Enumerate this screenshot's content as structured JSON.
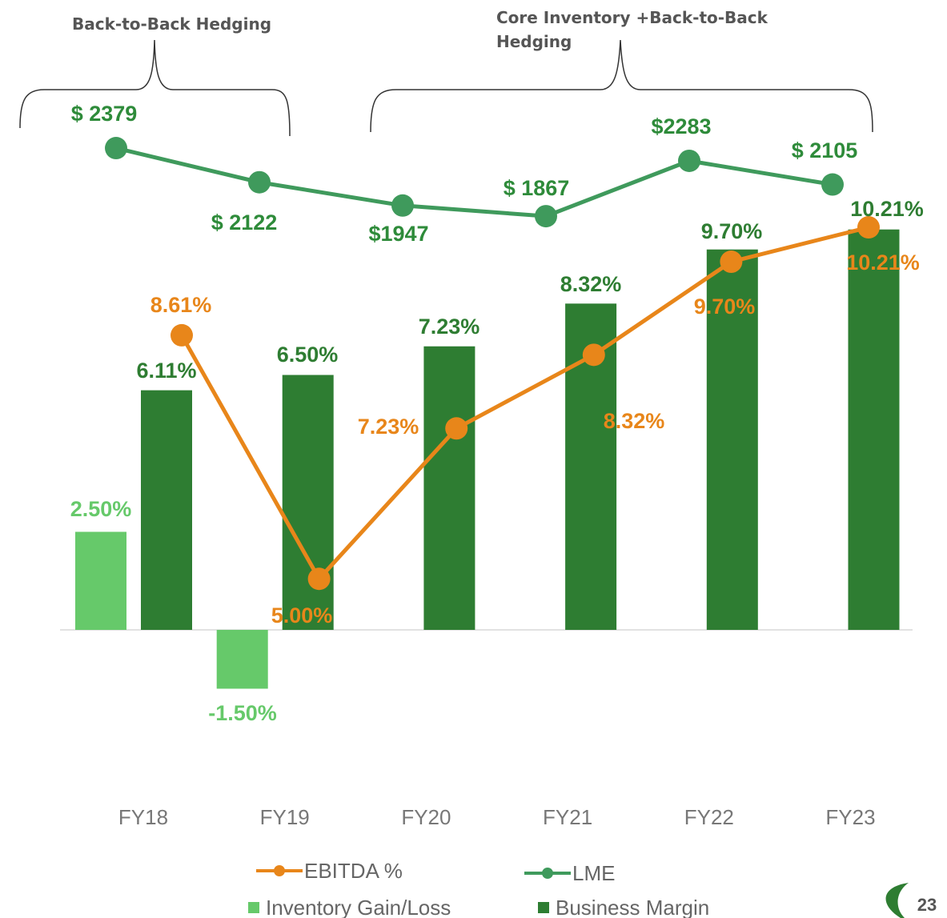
{
  "chart_data": {
    "type": "combo",
    "annotations": [
      "Back-to-Back Hedging",
      "Core Inventory +Back-to-Back Hedging"
    ],
    "page_number": "23",
    "categories": [
      "FY18",
      "FY19",
      "FY20",
      "FY21",
      "FY22",
      "FY23"
    ],
    "ylim": [
      -3,
      13
    ],
    "y2lim": [
      2.5,
      11.8
    ],
    "y3lim": [
      -2130,
      2590
    ],
    "series": [
      {
        "name": "Inventory Gain/Loss",
        "type": "bar",
        "axis": "y",
        "color": "#66c96a",
        "values": [
          2.5,
          -1.5,
          null,
          null,
          null,
          null
        ],
        "value_labels": [
          "2.50%",
          "-1.50%",
          null,
          null,
          null,
          null
        ]
      },
      {
        "name": "Business Margin",
        "type": "bar",
        "axis": "y",
        "color": "#2e7d32",
        "values": [
          6.11,
          6.5,
          7.23,
          8.32,
          9.7,
          10.21
        ],
        "value_labels": [
          "6.11%",
          "6.50%",
          "7.23%",
          "8.32%",
          "9.70%",
          "10.21%"
        ]
      },
      {
        "name": "EBITDA %",
        "type": "line",
        "axis": "y2",
        "color": "#e8861a",
        "values": [
          8.61,
          5.0,
          7.23,
          8.32,
          9.7,
          10.21
        ],
        "value_labels": [
          "8.61%",
          "5.00%",
          "7.23%",
          "8.32%",
          "9.70%",
          "10.21%"
        ]
      },
      {
        "name": "LME",
        "type": "line",
        "axis": "y3",
        "color": "#3f9a5c",
        "values": [
          2379,
          2122,
          1947,
          1867,
          2283,
          2105
        ],
        "value_labels": [
          "$ 2379",
          "$ 2122",
          "$1947",
          "$ 1867",
          "$2283",
          "$ 2105"
        ]
      }
    ]
  }
}
